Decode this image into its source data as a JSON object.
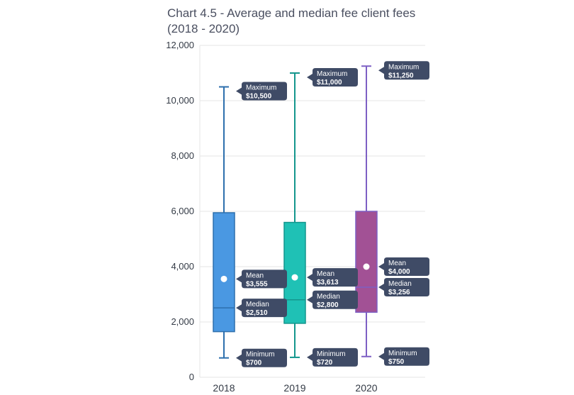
{
  "title_line1": "Chart 4.5 - Average and median fee client fees",
  "title_line2": "(2018 - 2020)",
  "chart_data": {
    "type": "boxplot",
    "title": "Chart 4.5 - Average and median fee client fees (2018 - 2020)",
    "xlabel": "",
    "ylabel": "",
    "ylim": [
      0,
      12000
    ],
    "yticks": [
      0,
      2000,
      4000,
      6000,
      8000,
      10000,
      12000
    ],
    "ytick_labels": [
      "0",
      "2,000",
      "4,000",
      "6,000",
      "8,000",
      "10,000",
      "12,000"
    ],
    "grid": true,
    "categories": [
      "2018",
      "2019",
      "2020"
    ],
    "boxes": [
      {
        "category": "2018",
        "color": "#4a98e2",
        "whisker": "#2d6fad",
        "min": 700,
        "q1": 1650,
        "median": 2510,
        "q3": 5950,
        "max": 10500,
        "mean": 3555,
        "labels": {
          "max_title": "Maximum",
          "max_value": "$10,500",
          "mean_title": "Mean",
          "mean_value": "$3,555",
          "median_title": "Median",
          "median_value": "$2,510",
          "min_title": "Minimum",
          "min_value": "$700"
        }
      },
      {
        "category": "2019",
        "color": "#1fc1b5",
        "whisker": "#14968d",
        "min": 720,
        "q1": 1950,
        "median": 2800,
        "q3": 5600,
        "max": 11000,
        "mean": 3613,
        "labels": {
          "max_title": "Maximum",
          "max_value": "$11,000",
          "mean_title": "Mean",
          "mean_value": "$3,613",
          "median_title": "Median",
          "median_value": "$2,800",
          "min_title": "Minimum",
          "min_value": "$720"
        }
      },
      {
        "category": "2020",
        "color": "#a25195",
        "whisker": "#7d5fc4",
        "min": 750,
        "q1": 2350,
        "median": 3256,
        "q3": 6000,
        "max": 11250,
        "mean": 4000,
        "labels": {
          "max_title": "Maximum",
          "max_value": "$11,250",
          "mean_title": "Mean",
          "mean_value": "$4,000",
          "median_title": "Median",
          "median_value": "$3,256",
          "min_title": "Minimum",
          "min_value": "$750"
        }
      }
    ]
  },
  "colors": {
    "callout": "#3f4b66",
    "grid": "#e6e6e6",
    "mean_dot": "#ffffff"
  }
}
